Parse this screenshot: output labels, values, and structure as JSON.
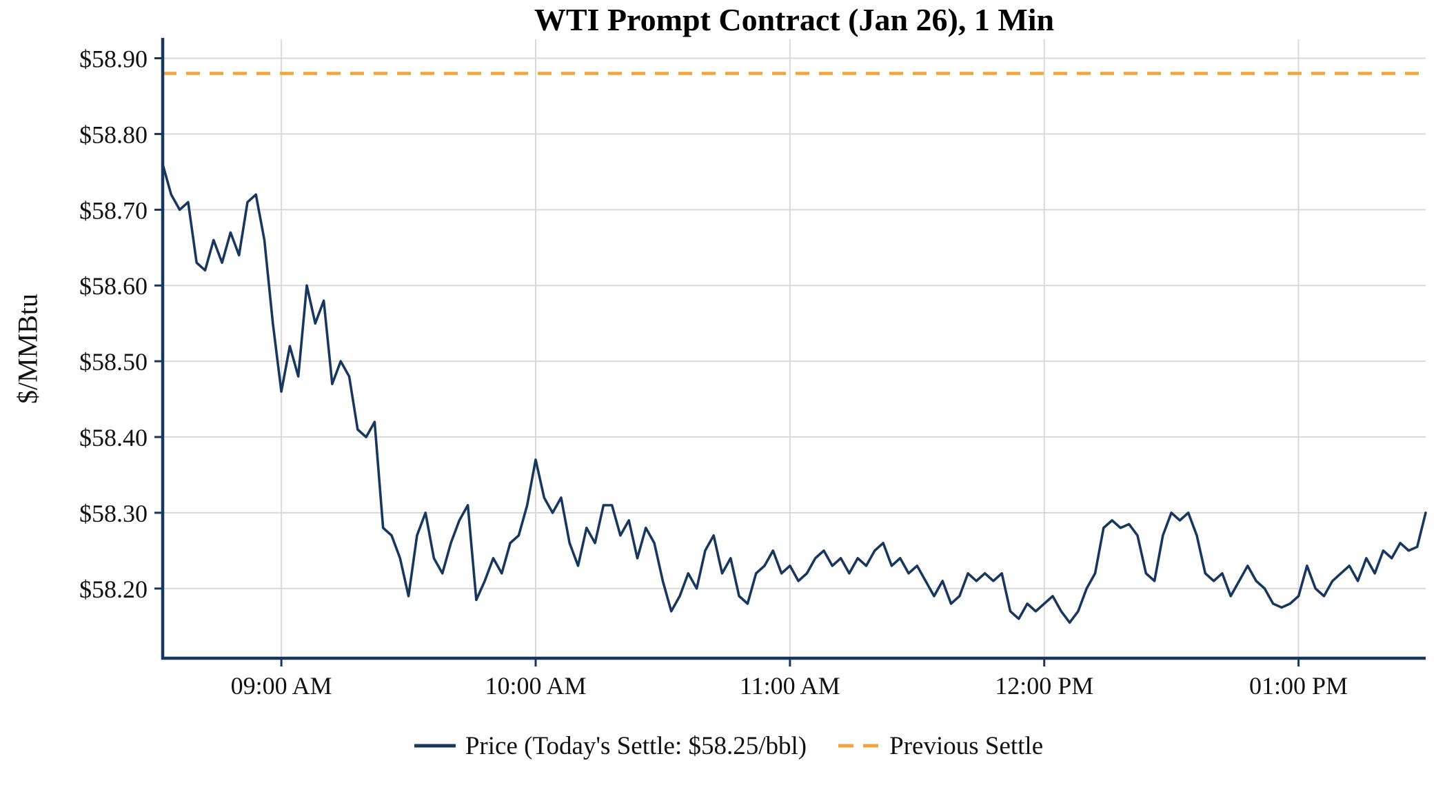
{
  "chart_data": {
    "type": "line",
    "title": "WTI Prompt Contract (Jan 26), 1 Min",
    "ylabel": "$/MMBtu",
    "x_tick_labels": [
      "09:00 AM",
      "10:00 AM",
      "11:00 AM",
      "12:00 PM",
      "01:00 PM"
    ],
    "x_tick_minutes": [
      540,
      600,
      660,
      720,
      780
    ],
    "x_range_minutes": [
      512,
      810
    ],
    "y_ticks": [
      58.2,
      58.3,
      58.4,
      58.5,
      58.6,
      58.7,
      58.8,
      58.9
    ],
    "y_tick_prefix": "$",
    "ylim": [
      58.108,
      58.925
    ],
    "grid": true,
    "legend_position": "bottom-center",
    "previous_settle": 58.88,
    "todays_settle_text": "$58.25/bbl",
    "series": [
      {
        "name": "Price",
        "start_minute": 512,
        "step_minutes": 2,
        "values": [
          58.76,
          58.72,
          58.7,
          58.71,
          58.63,
          58.62,
          58.66,
          58.63,
          58.67,
          58.64,
          58.71,
          58.72,
          58.66,
          58.55,
          58.46,
          58.52,
          58.48,
          58.6,
          58.55,
          58.58,
          58.47,
          58.5,
          58.48,
          58.41,
          58.4,
          58.42,
          58.28,
          58.27,
          58.24,
          58.19,
          58.27,
          58.3,
          58.24,
          58.22,
          58.26,
          58.29,
          58.31,
          58.185,
          58.21,
          58.24,
          58.22,
          58.26,
          58.27,
          58.31,
          58.37,
          58.32,
          58.3,
          58.32,
          58.26,
          58.23,
          58.28,
          58.26,
          58.31,
          58.31,
          58.27,
          58.29,
          58.24,
          58.28,
          58.26,
          58.21,
          58.17,
          58.19,
          58.22,
          58.2,
          58.25,
          58.27,
          58.22,
          58.24,
          58.19,
          58.18,
          58.22,
          58.23,
          58.25,
          58.22,
          58.23,
          58.21,
          58.22,
          58.24,
          58.25,
          58.23,
          58.24,
          58.22,
          58.24,
          58.23,
          58.25,
          58.26,
          58.23,
          58.24,
          58.22,
          58.23,
          58.21,
          58.19,
          58.21,
          58.18,
          58.19,
          58.22,
          58.21,
          58.22,
          58.21,
          58.22,
          58.17,
          58.16,
          58.18,
          58.17,
          58.18,
          58.19,
          58.17,
          58.155,
          58.17,
          58.2,
          58.22,
          58.28,
          58.29,
          58.28,
          58.285,
          58.27,
          58.22,
          58.21,
          58.27,
          58.3,
          58.29,
          58.3,
          58.27,
          58.22,
          58.21,
          58.22,
          58.19,
          58.21,
          58.23,
          58.21,
          58.2,
          58.18,
          58.175,
          58.18,
          58.19,
          58.23,
          58.2,
          58.19,
          58.21,
          58.22,
          58.23,
          58.21,
          58.24,
          58.22,
          58.25,
          58.24,
          58.26,
          58.25,
          58.255,
          58.3
        ]
      },
      {
        "name": "Previous Settle",
        "value": 58.88,
        "style": "dashed"
      }
    ],
    "legend": {
      "items": [
        {
          "label": "Price (Today's Settle: $58.25/bbl)",
          "style": "solid",
          "color_key": "price"
        },
        {
          "label": "Previous Settle",
          "style": "dashed",
          "color_key": "previous_settle"
        }
      ]
    },
    "colors": {
      "price": "#17375E",
      "previous_settle": "#F2A33C",
      "grid": "#D9D9D9",
      "axis": "#17375E",
      "text": "#111111"
    }
  }
}
